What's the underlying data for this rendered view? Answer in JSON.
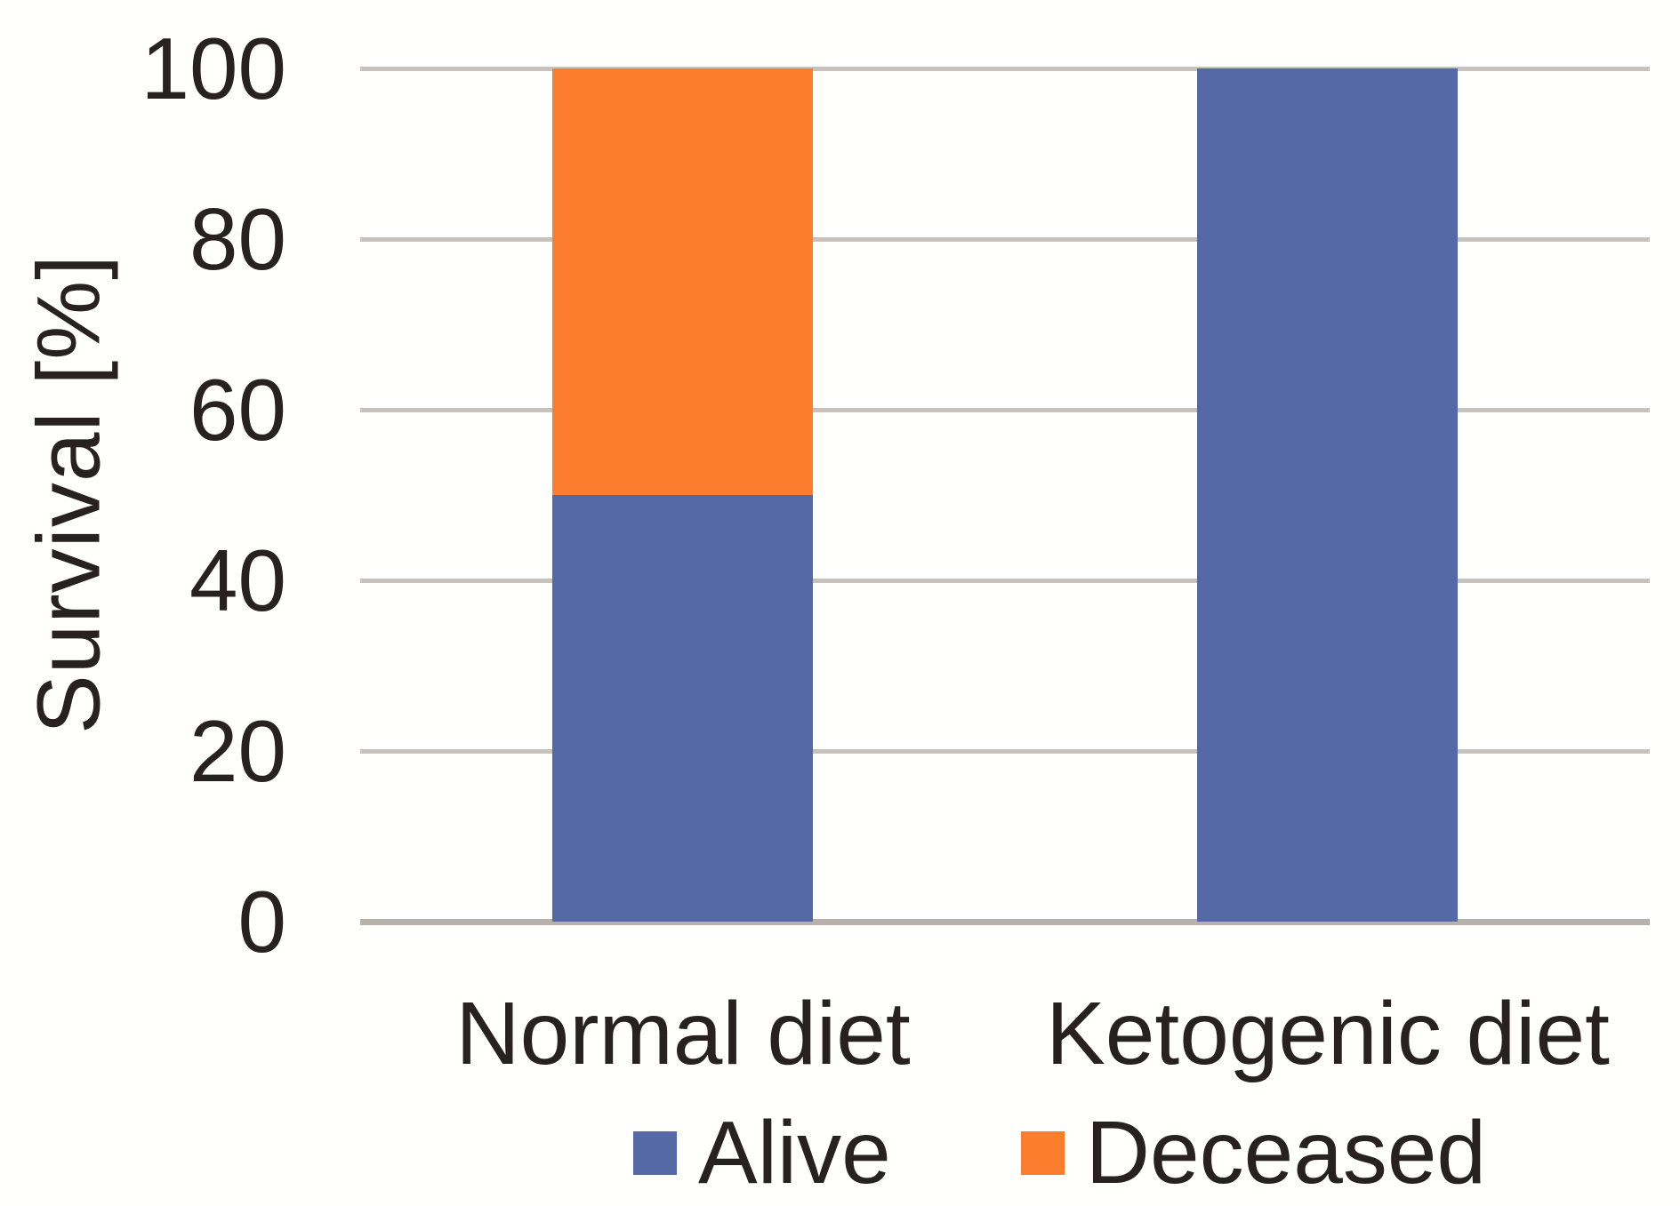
{
  "chart_data": {
    "type": "bar",
    "stacked": true,
    "title": "",
    "categories": [
      "Normal diet",
      "Ketogenic diet"
    ],
    "series": [
      {
        "name": "Alive",
        "values": [
          50,
          100
        ],
        "color": "#5469A5"
      },
      {
        "name": "Deceased",
        "values": [
          50,
          0
        ],
        "color": "#FD7D2F"
      }
    ],
    "xlabel": "",
    "ylabel": "Survival [%]",
    "ylim": [
      0,
      100
    ],
    "yticks": [
      0,
      20,
      40,
      60,
      80,
      100
    ],
    "grid": true,
    "legend_position": "bottom",
    "legend": [
      {
        "label": "Alive",
        "color": "#5469A5"
      },
      {
        "label": "Deceased",
        "color": "#FD7D2F"
      }
    ]
  },
  "colors": {
    "background": "#FFFFFE",
    "text": "#272221",
    "gridline": "#C8C2BC",
    "axis_line": "#B7B1AB",
    "alive": "#5469A5",
    "deceased": "#FD7D2F"
  }
}
